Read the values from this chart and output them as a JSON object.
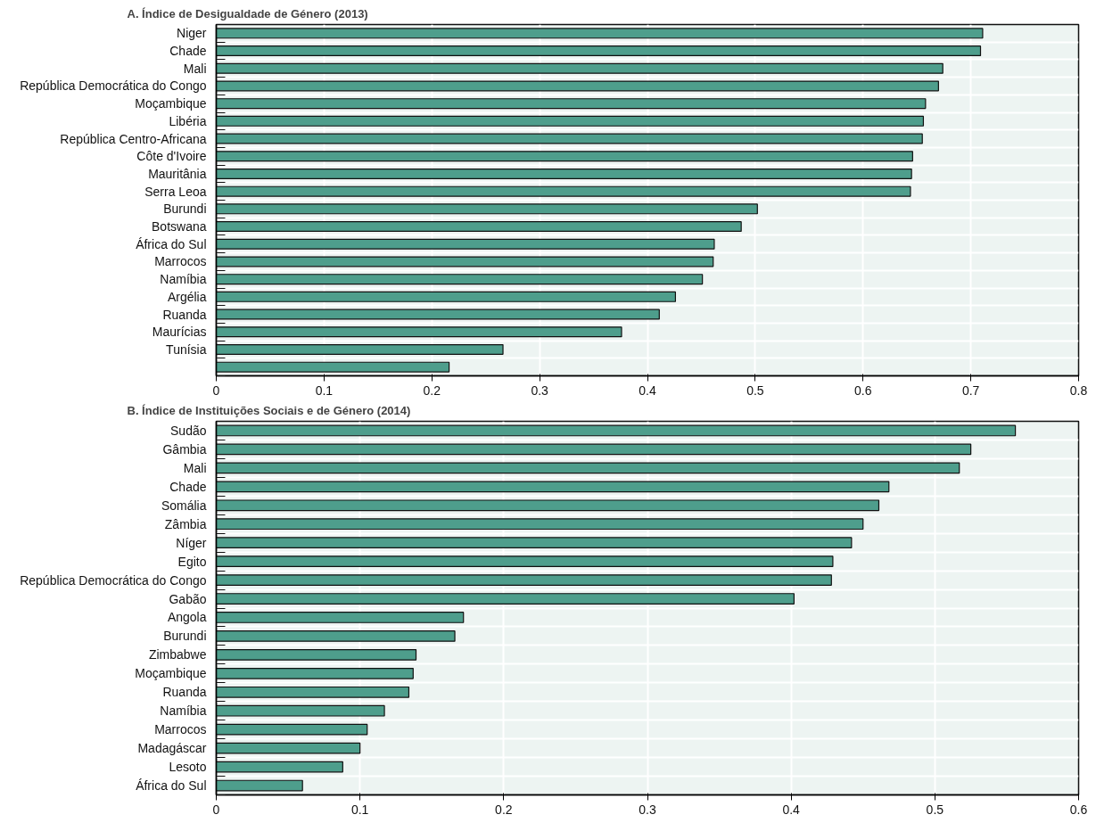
{
  "chart_data": [
    {
      "type": "bar",
      "orientation": "horizontal",
      "title": "A.   Índice de Desigualdade de Género (2013)",
      "color": "#4e9e8c",
      "grid": true,
      "xlim": [
        0,
        0.8
      ],
      "xticks": [
        0,
        0.1,
        0.2,
        0.3,
        0.4,
        0.5,
        0.6,
        0.7,
        0.8
      ],
      "categories": [
        "Niger",
        "Chade",
        "Mali",
        "República Democrática do Congo",
        "Moçambique",
        "Libéria",
        "República Centro-Africana",
        "Côte d'Ivoire",
        "Mauritânia",
        "Serra Leoa",
        "Burundi",
        "Botswana",
        "África do Sul",
        "Marrocos",
        "Namíbia",
        "Argélia",
        "Ruanda",
        "Maurícias",
        "Tunísia",
        null
      ],
      "values": [
        0.711,
        0.709,
        0.674,
        0.67,
        0.658,
        0.656,
        0.655,
        0.646,
        0.645,
        0.644,
        0.502,
        0.487,
        0.462,
        0.461,
        0.451,
        0.426,
        0.411,
        0.376,
        0.266,
        0.216
      ]
    },
    {
      "type": "bar",
      "orientation": "horizontal",
      "title": "B.   Índice de Instituições Sociais e de Género (2014)",
      "color": "#4e9e8c",
      "grid": true,
      "xlim": [
        0,
        0.6
      ],
      "xticks": [
        0,
        0.1,
        0.2,
        0.3,
        0.4,
        0.5,
        0.6
      ],
      "categories": [
        "Sudão",
        "Gâmbia",
        "Mali",
        "Chade",
        "Somália",
        "Zâmbia",
        "Níger",
        "Egito",
        "República Democrática do Congo",
        "Gabão",
        "Angola",
        "Burundi",
        "Zimbabwe",
        "Moçambique",
        "Ruanda",
        "Namíbia",
        "Marrocos",
        "Madagáscar",
        "Lesoto",
        "África do Sul"
      ],
      "values": [
        0.556,
        0.525,
        0.517,
        0.468,
        0.461,
        0.45,
        0.442,
        0.429,
        0.428,
        0.402,
        0.172,
        0.166,
        0.139,
        0.137,
        0.134,
        0.117,
        0.105,
        0.1,
        0.088,
        0.06
      ]
    }
  ]
}
